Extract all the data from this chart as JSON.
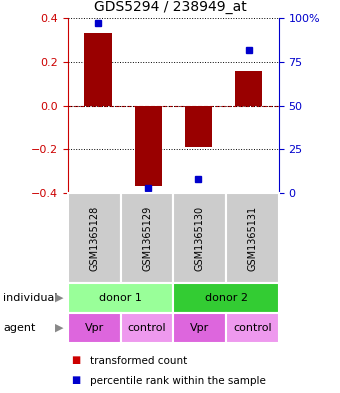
{
  "title": "GDS5294 / 238949_at",
  "samples": [
    "GSM1365128",
    "GSM1365129",
    "GSM1365130",
    "GSM1365131"
  ],
  "bar_values": [
    0.33,
    -0.37,
    -0.19,
    0.16
  ],
  "percentile_raw": [
    97,
    3,
    8,
    82
  ],
  "ylim": [
    -0.4,
    0.4
  ],
  "yticks_left": [
    -0.4,
    -0.2,
    0.0,
    0.2,
    0.4
  ],
  "yticks_right": [
    0,
    25,
    50,
    75,
    100
  ],
  "bar_color": "#990000",
  "dot_color": "#0000cc",
  "individual_donors": [
    {
      "label": "donor 1",
      "start": 0,
      "end": 2,
      "color": "#99ff99"
    },
    {
      "label": "donor 2",
      "start": 2,
      "end": 4,
      "color": "#33cc33"
    }
  ],
  "agent_labels": [
    "Vpr",
    "control",
    "Vpr",
    "control"
  ],
  "agent_colors": [
    "#dd66dd",
    "#ee99ee",
    "#dd66dd",
    "#ee99ee"
  ],
  "sample_bg_color": "#cccccc",
  "legend_bar_color": "#cc0000",
  "legend_dot_color": "#0000cc",
  "zero_line_color": "#cc0000",
  "right_axis_color": "#0000cc",
  "left_axis_color": "#cc0000",
  "title_fontsize": 10,
  "axis_fontsize": 8,
  "sample_fontsize": 7,
  "legend_fontsize": 7.5
}
